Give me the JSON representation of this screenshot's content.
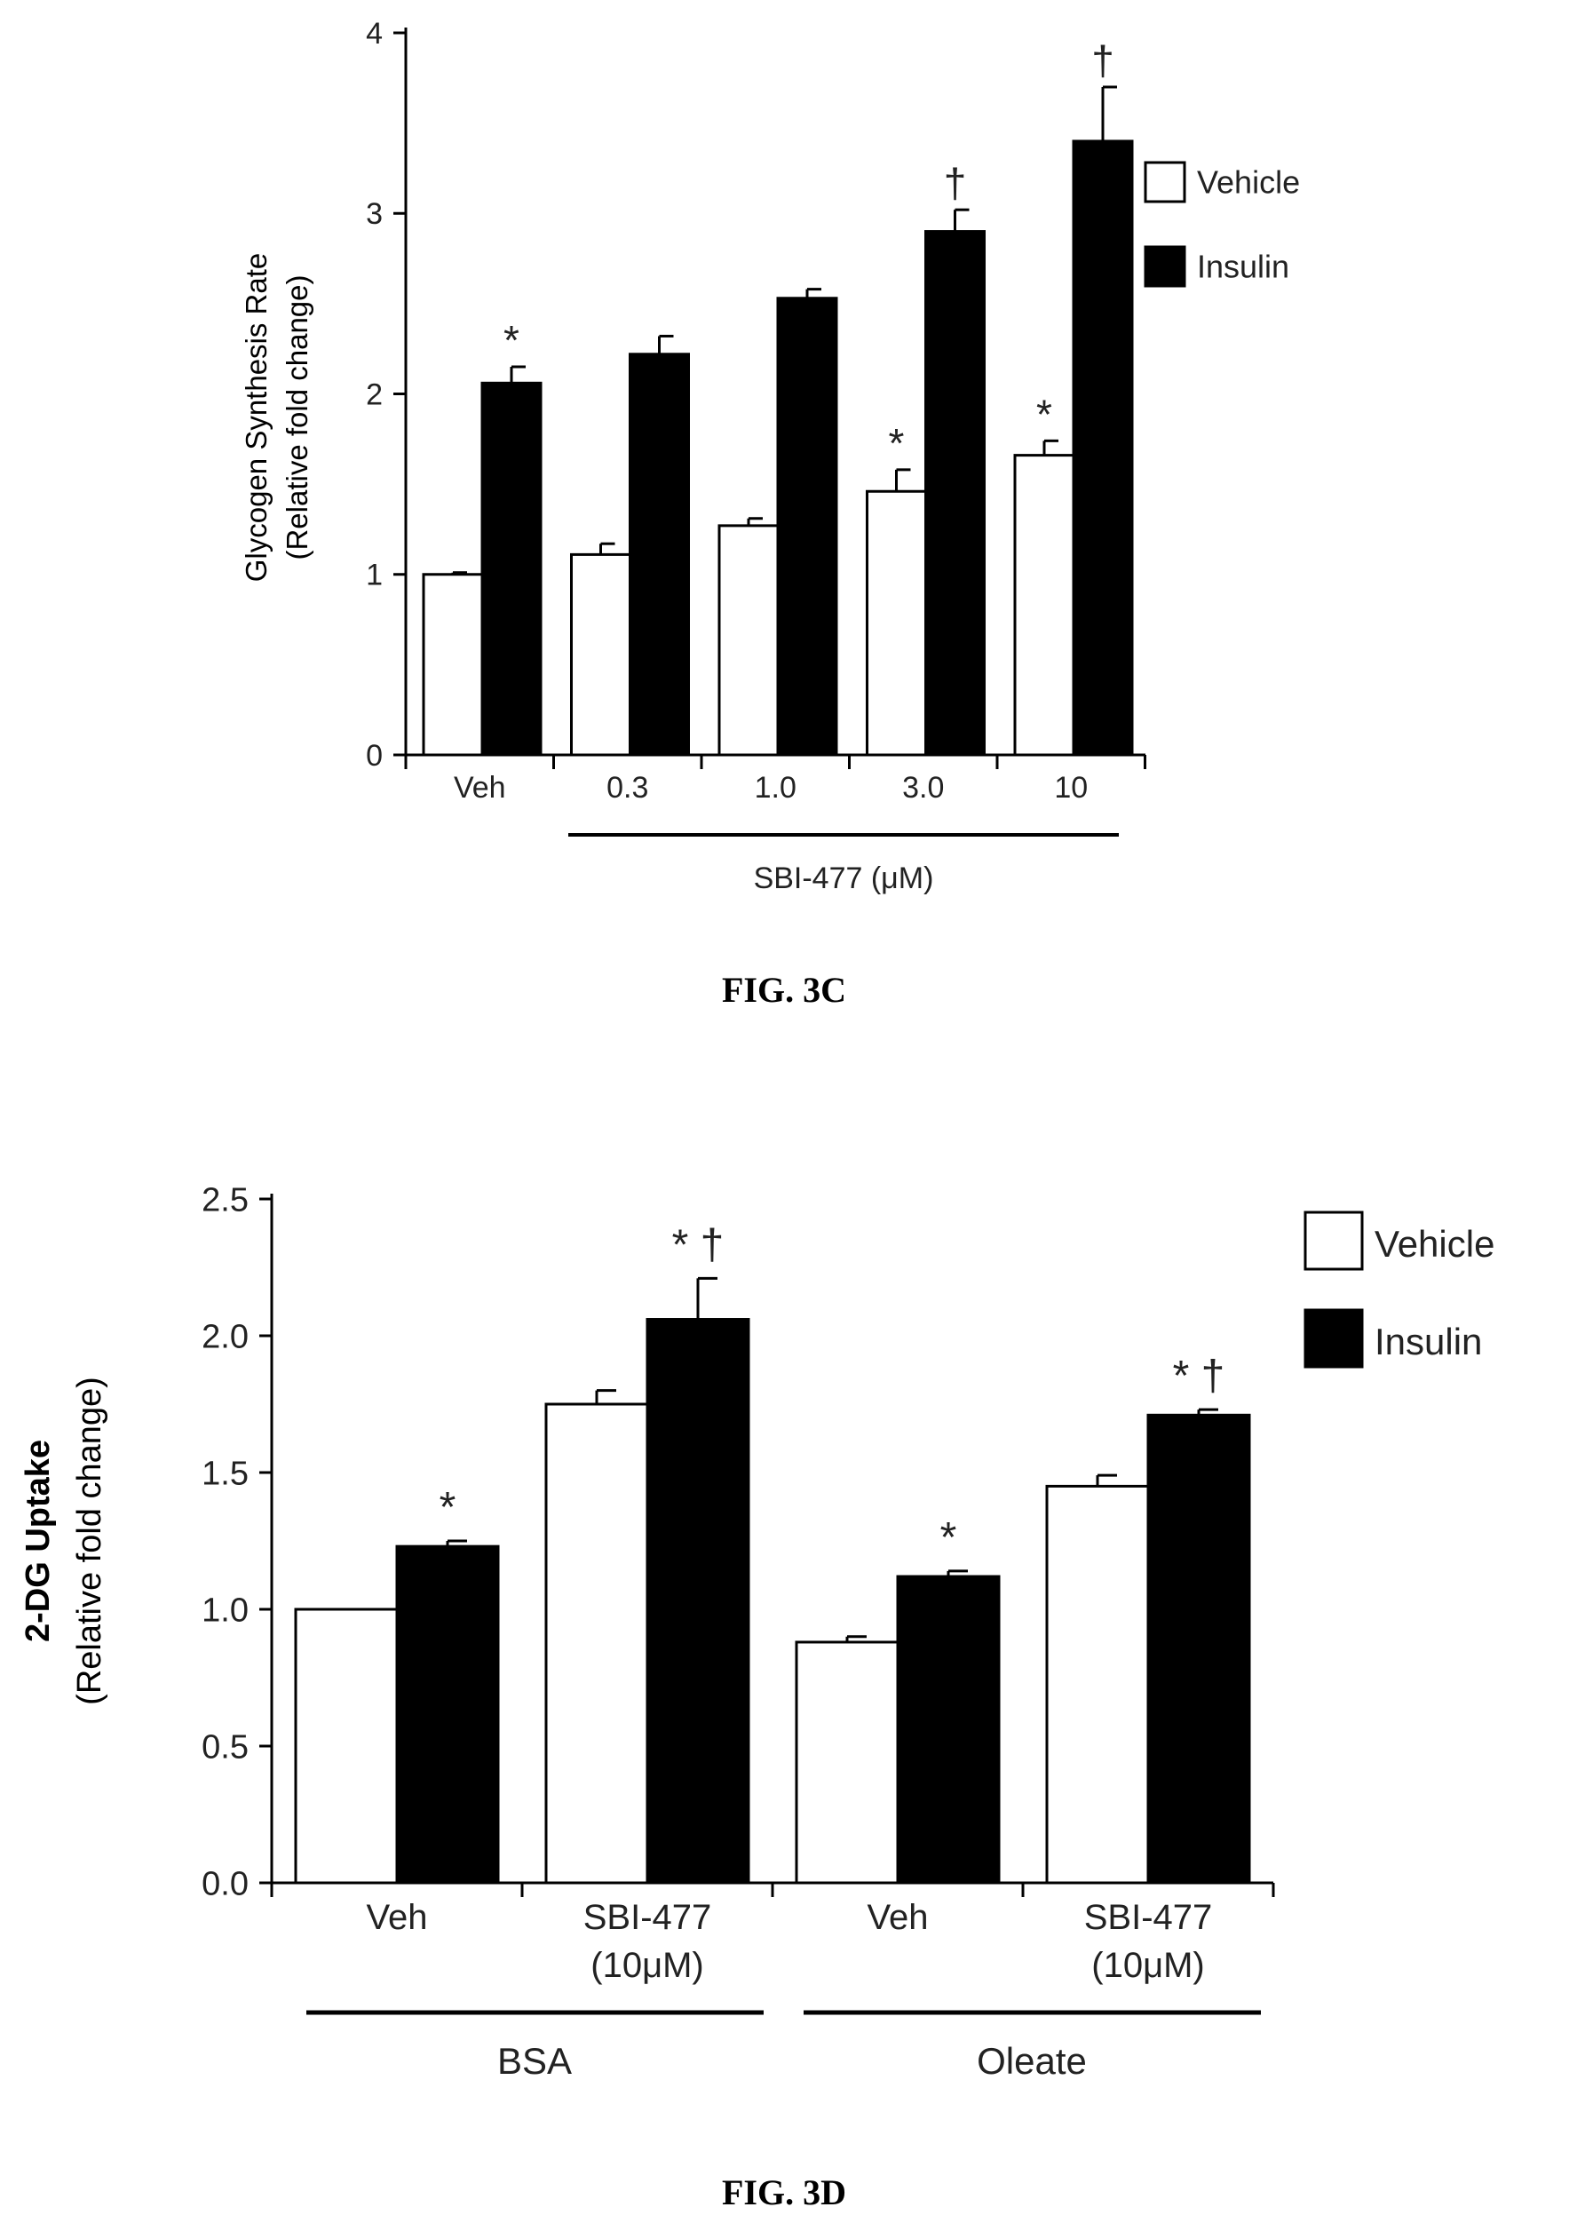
{
  "figure_c": {
    "caption": "FIG. 3C",
    "group_label": "SBI-477 (μM)"
  },
  "figure_d": {
    "caption": "FIG. 3D",
    "group_labels": [
      "BSA",
      "Oleate"
    ]
  },
  "colors": {
    "vehicle": "#ffffff",
    "insulin": "#000000",
    "stroke": "#000000"
  },
  "chart_data": [
    {
      "type": "bar",
      "title": "",
      "xlabel": "",
      "ylabel": [
        "Glycogen Synthesis Rate",
        "(Relative fold change)"
      ],
      "ylim": [
        0,
        4
      ],
      "yticks": [
        "0",
        "1",
        "2",
        "3",
        "4"
      ],
      "categories": [
        [
          "Veh"
        ],
        [
          "0.3"
        ],
        [
          "1.0"
        ],
        [
          "3.0"
        ],
        [
          "10"
        ]
      ],
      "series": [
        {
          "name": "Vehicle",
          "values": [
            1.0,
            1.11,
            1.27,
            1.46,
            1.66
          ],
          "errors": [
            0.01,
            0.06,
            0.04,
            0.12,
            0.08
          ]
        },
        {
          "name": "Insulin",
          "values": [
            2.06,
            2.22,
            2.53,
            2.9,
            3.4
          ],
          "errors": [
            0.09,
            0.1,
            0.05,
            0.12,
            0.3
          ]
        }
      ],
      "annotations": [
        {
          "series": "Insulin",
          "index": 0,
          "text": "*"
        },
        {
          "series": "Vehicle",
          "index": 3,
          "text": "*"
        },
        {
          "series": "Insulin",
          "index": 3,
          "text": "†"
        },
        {
          "series": "Vehicle",
          "index": 4,
          "text": "*"
        },
        {
          "series": "Insulin",
          "index": 4,
          "text": "†"
        }
      ],
      "legend": {
        "position": "right",
        "labels": [
          "Vehicle",
          "Insulin"
        ]
      },
      "grid": false
    },
    {
      "type": "bar",
      "title": "",
      "xlabel": "",
      "ylabel": [
        "2-DG Uptake",
        "(Relative fold change)"
      ],
      "ylim": [
        0,
        2.5
      ],
      "yticks": [
        "0.0",
        "0.5",
        "1.0",
        "1.5",
        "2.0",
        "2.5"
      ],
      "categories": [
        [
          "Veh"
        ],
        [
          "SBI-477",
          "(10μM)"
        ],
        [
          "Veh"
        ],
        [
          "SBI-477",
          "(10μM)"
        ]
      ],
      "series": [
        {
          "name": "Vehicle",
          "values": [
            1.0,
            1.75,
            0.88,
            1.45
          ],
          "errors": [
            0.0,
            0.05,
            0.02,
            0.04
          ]
        },
        {
          "name": "Insulin",
          "values": [
            1.23,
            2.06,
            1.12,
            1.71
          ],
          "errors": [
            0.02,
            0.15,
            0.02,
            0.02
          ]
        }
      ],
      "annotations": [
        {
          "series": "Insulin",
          "index": 0,
          "text": "*"
        },
        {
          "series": "Insulin",
          "index": 1,
          "text": "* †"
        },
        {
          "series": "Insulin",
          "index": 2,
          "text": "*"
        },
        {
          "series": "Insulin",
          "index": 3,
          "text": "* †"
        }
      ],
      "legend": {
        "position": "top-right",
        "labels": [
          "Vehicle",
          "Insulin"
        ]
      },
      "grid": false
    }
  ]
}
